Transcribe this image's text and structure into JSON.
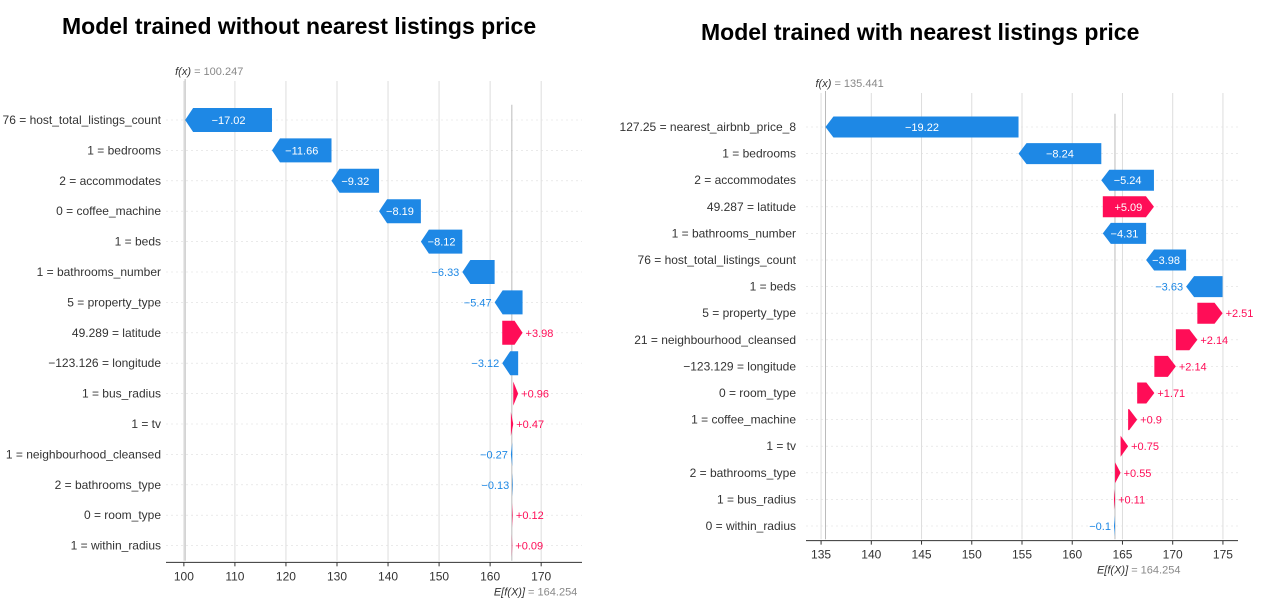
{
  "colors": {
    "positive": "#ff0d57",
    "negative": "#1e88e5",
    "negative_text": "#1e88e5",
    "grid": "#dddddd"
  },
  "chart_data": [
    {
      "type": "waterfall",
      "title": "Model trained without nearest listings price",
      "fx_label": "f(x)",
      "fx_value": "100.247",
      "base_label": "E[f(X)]",
      "base_value_text": "164.254",
      "base_value": 164.254,
      "final_value": 100.247,
      "xlim": [
        96.5,
        178
      ],
      "ticks": [
        100,
        110,
        120,
        130,
        140,
        150,
        160,
        170
      ],
      "tick_labels": [
        "100",
        "110",
        "120",
        "130",
        "140",
        "150",
        "160",
        "170"
      ],
      "features": [
        {
          "label": "76 = host_total_listings_count",
          "value": -17.02,
          "text": "−17.02"
        },
        {
          "label": "1 = bedrooms",
          "value": -11.66,
          "text": "−11.66"
        },
        {
          "label": "2 = accommodates",
          "value": -9.32,
          "text": "−9.32"
        },
        {
          "label": "0 = coffee_machine",
          "value": -8.19,
          "text": "−8.19"
        },
        {
          "label": "1 = beds",
          "value": -8.12,
          "text": "−8.12"
        },
        {
          "label": "1 = bathrooms_number",
          "value": -6.33,
          "text": "−6.33"
        },
        {
          "label": "5 = property_type",
          "value": -5.47,
          "text": "−5.47"
        },
        {
          "label": "49.289 = latitude",
          "value": 3.98,
          "text": "+3.98"
        },
        {
          "label": "−123.126 = longitude",
          "value": -3.12,
          "text": "−3.12"
        },
        {
          "label": "1 = bus_radius",
          "value": 0.96,
          "text": "+0.96"
        },
        {
          "label": "1 = tv",
          "value": 0.47,
          "text": "+0.47"
        },
        {
          "label": "1 = neighbourhood_cleansed",
          "value": -0.27,
          "text": "−0.27"
        },
        {
          "label": "2 = bathrooms_type",
          "value": -0.13,
          "text": "−0.13"
        },
        {
          "label": "0 = room_type",
          "value": 0.12,
          "text": "+0.12"
        },
        {
          "label": "1 = within_radius",
          "value": 0.09,
          "text": "+0.09"
        }
      ]
    },
    {
      "type": "waterfall",
      "title": "Model trained with nearest listings price",
      "fx_label": "f(x)",
      "fx_value": "135.441",
      "base_label": "E[f(X)]",
      "base_value_text": "164.254",
      "base_value": 164.254,
      "final_value": 135.441,
      "xlim": [
        133.5,
        176.5
      ],
      "ticks": [
        135,
        140,
        145,
        150,
        155,
        160,
        165,
        170,
        175
      ],
      "tick_labels": [
        "135",
        "140",
        "145",
        "150",
        "155",
        "160",
        "165",
        "170",
        "175"
      ],
      "features": [
        {
          "label": "127.25 = nearest_airbnb_price_8",
          "value": -19.22,
          "text": "−19.22"
        },
        {
          "label": "1 = bedrooms",
          "value": -8.24,
          "text": "−8.24"
        },
        {
          "label": "2 = accommodates",
          "value": -5.24,
          "text": "−5.24"
        },
        {
          "label": "49.287 = latitude",
          "value": 5.09,
          "text": "+5.09"
        },
        {
          "label": "1 = bathrooms_number",
          "value": -4.31,
          "text": "−4.31"
        },
        {
          "label": "76 = host_total_listings_count",
          "value": -3.98,
          "text": "−3.98"
        },
        {
          "label": "1 = beds",
          "value": -3.63,
          "text": "−3.63"
        },
        {
          "label": "5 = property_type",
          "value": 2.51,
          "text": "+2.51"
        },
        {
          "label": "21 = neighbourhood_cleansed",
          "value": 2.14,
          "text": "+2.14"
        },
        {
          "label": "−123.129 = longitude",
          "value": 2.14,
          "text": "+2.14"
        },
        {
          "label": "0 = room_type",
          "value": 1.71,
          "text": "+1.71"
        },
        {
          "label": "1 = coffee_machine",
          "value": 0.9,
          "text": "+0.9"
        },
        {
          "label": "1 = tv",
          "value": 0.75,
          "text": "+0.75"
        },
        {
          "label": "2 = bathrooms_type",
          "value": 0.55,
          "text": "+0.55"
        },
        {
          "label": "1 = bus_radius",
          "value": 0.11,
          "text": "+0.11"
        },
        {
          "label": "0 = within_radius",
          "value": -0.1,
          "text": "−0.1"
        }
      ]
    }
  ]
}
